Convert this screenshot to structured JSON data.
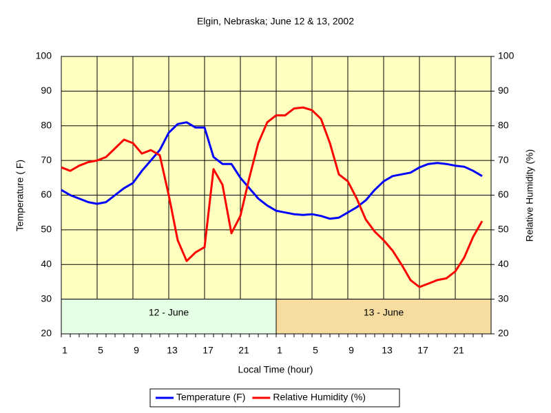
{
  "chart_data": {
    "type": "line",
    "title": "Elgin, Nebraska; June 12 & 13, 2002",
    "x_label": "Local Time (hour)",
    "y_label": "Temperature ( F)",
    "y2_label": "Relative Humidity (%)",
    "categories": [
      "1",
      null,
      null,
      null,
      "5",
      null,
      null,
      null,
      "9",
      null,
      null,
      null,
      "13",
      null,
      null,
      null,
      "17",
      null,
      null,
      null,
      "21",
      null,
      null,
      null,
      "1",
      null,
      null,
      null,
      "5",
      null,
      null,
      null,
      "9",
      null,
      null,
      null,
      "13",
      null,
      null,
      null,
      "17",
      null,
      null,
      null,
      "21",
      null,
      null,
      null
    ],
    "series": [
      {
        "name": "Temperature (F)",
        "color": "#0000ff",
        "axis": "y",
        "values": [
          61.5,
          60,
          59,
          58,
          57.5,
          58,
          60,
          62,
          63.5,
          67,
          70,
          73,
          78,
          80.5,
          81,
          79.5,
          79.5,
          71,
          69,
          69,
          65,
          62,
          59,
          57,
          55.5,
          55,
          54.5,
          54.3,
          54.5,
          54,
          53.2,
          53.5,
          55,
          56.5,
          58.5,
          61.5,
          64,
          65.5,
          66,
          66.5,
          68,
          69,
          69.3,
          69,
          68.5,
          68.2,
          67,
          65.5
        ]
      },
      {
        "name": "Relative Humidity (%)",
        "color": "#ff0000",
        "axis": "y2",
        "values": [
          68,
          67,
          68.5,
          69.5,
          70,
          71,
          73.5,
          76,
          75,
          72,
          73,
          71.5,
          60,
          47,
          41,
          43.5,
          45,
          67.5,
          63,
          49,
          54,
          65,
          75,
          81,
          83,
          83,
          85,
          85.3,
          84.5,
          82,
          75,
          66,
          64,
          59,
          53,
          49.5,
          47,
          44,
          40,
          35.5,
          33.5,
          34.5,
          35.5,
          36,
          38,
          42,
          48,
          52.5
        ]
      }
    ],
    "annotations": [
      "12 - June",
      "13 - June"
    ],
    "ylim": [
      20,
      100
    ],
    "yticks": [
      20,
      30,
      40,
      50,
      60,
      70,
      80,
      90,
      100
    ],
    "y2lim": [
      20,
      100
    ],
    "y2ticks": [
      20,
      30,
      40,
      50,
      60,
      70,
      80,
      90,
      100
    ],
    "grid": true,
    "legend": "bottom"
  }
}
